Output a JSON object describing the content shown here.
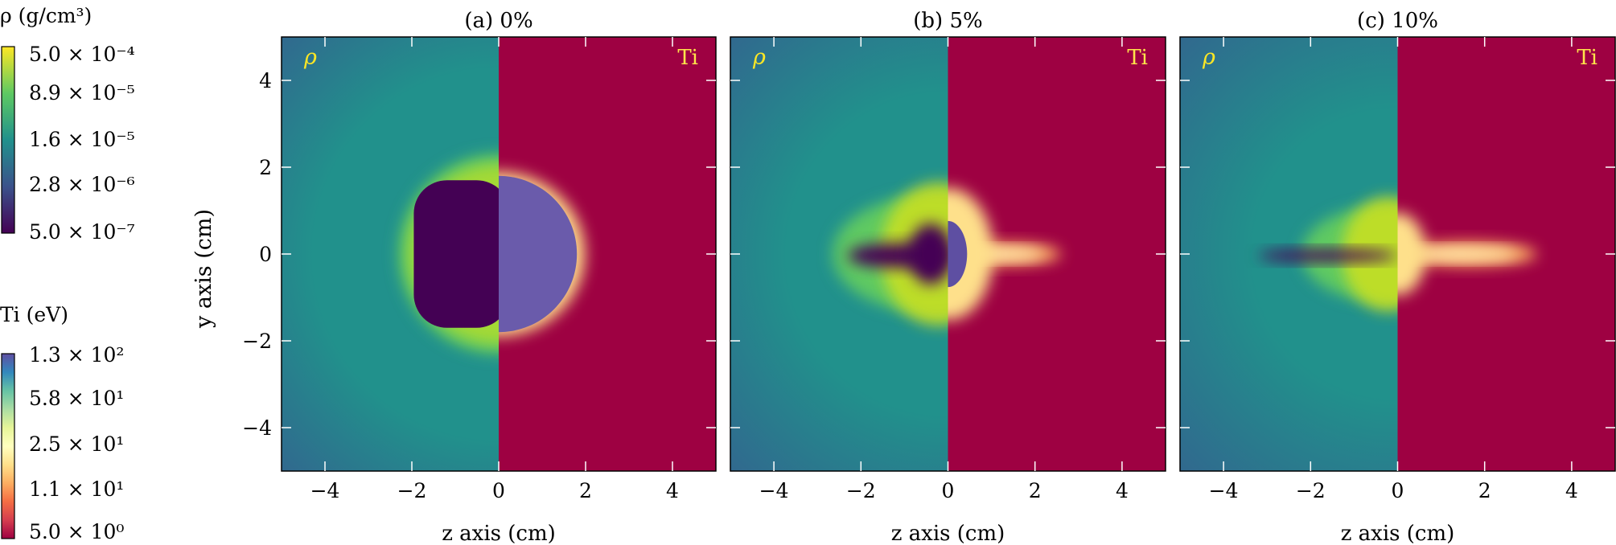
{
  "chart_data": [
    {
      "type": "heatmap",
      "title": "(a) 0%",
      "xlabel": "z axis (cm)",
      "ylabel": "y axis (cm)",
      "xlim": [
        -5,
        5
      ],
      "ylim": [
        -5,
        5
      ],
      "xticks": [
        -4,
        -2,
        0,
        2,
        4
      ],
      "yticks": [
        -4,
        -2,
        0,
        2,
        4
      ],
      "xtick_labels": [
        "−4",
        "−2",
        "0",
        "2",
        "4"
      ],
      "ytick_labels": [
        "−4",
        "−2",
        "0",
        "2",
        "4"
      ],
      "left_label": "ρ",
      "right_label": "Ti",
      "features": {
        "low_density_cavity_radius_cm": 1.7,
        "high_density_shell_radius_cm": 2.3,
        "hot_region_radius_cm": 1.8,
        "jet_length_cm": 0,
        "cavity_min_z_cm": 0,
        "asymmetry": 0.0
      }
    },
    {
      "type": "heatmap",
      "title": "(b) 5%",
      "xlabel": "z axis (cm)",
      "ylabel": "",
      "xlim": [
        -5,
        5
      ],
      "ylim": [
        -5,
        5
      ],
      "xticks": [
        -4,
        -2,
        0,
        2,
        4
      ],
      "yticks": [
        -4,
        -2,
        0,
        2,
        4
      ],
      "xtick_labels": [
        "−4",
        "−2",
        "0",
        "2",
        "4"
      ],
      "ytick_labels": [],
      "left_label": "ρ",
      "right_label": "Ti",
      "features": {
        "low_density_cavity_radius_cm": 1.0,
        "high_density_shell_radius_cm": 1.5,
        "hot_region_radius_cm": 0.8,
        "jet_length_cm": 2.6,
        "cavity_min_z_cm": -2.3,
        "asymmetry": 0.5
      }
    },
    {
      "type": "heatmap",
      "title": "(c) 10%",
      "xlabel": "z axis (cm)",
      "ylabel": "",
      "xlim": [
        -5,
        5
      ],
      "ylim": [
        -5,
        5
      ],
      "xticks": [
        -4,
        -2,
        0,
        2,
        4
      ],
      "yticks": [
        -4,
        -2,
        0,
        2,
        4
      ],
      "xtick_labels": [
        "−4",
        "−2",
        "0",
        "2",
        "4"
      ],
      "ytick_labels": [],
      "left_label": "ρ",
      "right_label": "Ti",
      "features": {
        "low_density_cavity_radius_cm": 0.5,
        "high_density_shell_radius_cm": 1.2,
        "hot_region_radius_cm": 0.5,
        "jet_length_cm": 3.2,
        "cavity_min_z_cm": -3.2,
        "asymmetry": 0.8
      }
    }
  ],
  "colorbars": {
    "rho": {
      "label": "ρ (g/cm³)",
      "scale": "log",
      "colormap": "viridis",
      "ticks": [
        "5.0 × 10⁻⁴",
        "8.9 × 10⁻⁵",
        "1.6 × 10⁻⁵",
        "2.8 × 10⁻⁶",
        "5.0 × 10⁻⁷"
      ],
      "colors": [
        "#fde725",
        "#5ec962",
        "#21918c",
        "#3b528b",
        "#440154"
      ]
    },
    "ti": {
      "label": "Ti (eV)",
      "scale": "log",
      "colormap": "Spectral",
      "ticks": [
        "1.3 × 10²",
        "5.8 × 10¹",
        "2.5 × 10¹",
        "1.1 × 10¹",
        "5.0 × 10⁰"
      ],
      "colors": [
        "#5e4fa2",
        "#3288bd",
        "#66c2a5",
        "#abdda4",
        "#e6f598",
        "#ffffbf",
        "#fee08b",
        "#fdae61",
        "#f46d43",
        "#d53e4f",
        "#9e0142"
      ]
    }
  },
  "colors": {
    "left_label_color": "#fde725",
    "right_label_color": "#ffe54a",
    "ti_background": "#9e0142",
    "tick_color": "#ffffff"
  }
}
